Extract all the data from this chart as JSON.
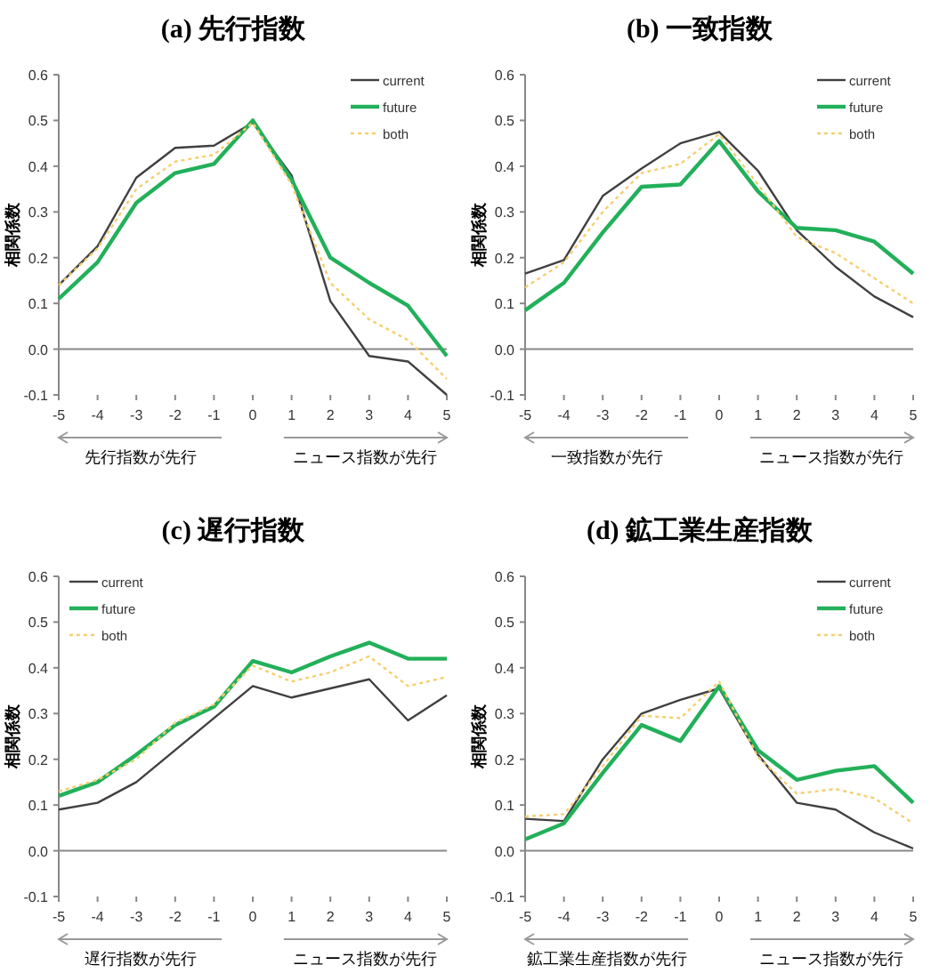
{
  "chart_data": [
    {
      "type": "line",
      "title": "(a) 先行指数",
      "ref_lines": [
        {
          "axis": "y",
          "value": 0,
          "color": "#888888"
        }
      ],
      "ylabel": "相関係数",
      "annotations": [
        "先行指数が先行",
        "ニュース指数が先行"
      ],
      "x": [
        -5,
        -4,
        -3,
        -2,
        -1,
        0,
        1,
        2,
        3,
        4,
        5
      ],
      "xlim": [
        -5,
        5
      ],
      "xticks": [
        -5,
        -4,
        -3,
        -2,
        -1,
        0,
        1,
        2,
        3,
        4,
        5
      ],
      "ylim": [
        -0.1,
        0.6
      ],
      "yticks": [
        {
          "value": -0.1,
          "label": "-0.1"
        },
        {
          "value": 0,
          "label": "0.0"
        },
        {
          "value": 0.1,
          "label": "0.1"
        },
        {
          "value": 0.2,
          "label": "0.2"
        },
        {
          "value": 0.3,
          "label": "0.3"
        },
        {
          "value": 0.4,
          "label": "0.4"
        },
        {
          "value": 0.5,
          "label": "0.5"
        },
        {
          "value": 0.6,
          "label": "0.6"
        }
      ],
      "grid": false,
      "legend": "top right",
      "marker": "none",
      "series": [
        {
          "name": "current",
          "color": "#404040",
          "line_style": "solid",
          "values": [
            0.14,
            0.225,
            0.375,
            0.44,
            0.445,
            0.495,
            0.38,
            0.105,
            -0.015,
            -0.027,
            -0.1
          ]
        },
        {
          "name": "future",
          "color": "#22b05a",
          "line_style": "solid",
          "values": [
            0.11,
            0.19,
            0.32,
            0.385,
            0.405,
            0.5,
            0.37,
            0.2,
            0.145,
            0.095,
            -0.015
          ]
        },
        {
          "name": "both",
          "color": "#f5cf6e",
          "line_style": "dotted",
          "values": [
            0.14,
            0.22,
            0.35,
            0.41,
            0.425,
            0.495,
            0.36,
            0.145,
            0.065,
            0.02,
            -0.065
          ]
        }
      ]
    },
    {
      "type": "line",
      "title": "(b) 一致指数",
      "ref_lines": [
        {
          "axis": "y",
          "value": 0,
          "color": "#888888"
        }
      ],
      "ylabel": "相関係数",
      "annotations": [
        "一致指数が先行",
        "ニュース指数が先行"
      ],
      "x": [
        -5,
        -4,
        -3,
        -2,
        -1,
        0,
        1,
        2,
        3,
        4,
        5
      ],
      "xlim": [
        -5,
        5
      ],
      "xticks": [
        -5,
        -4,
        -3,
        -2,
        -1,
        0,
        1,
        2,
        3,
        4,
        5
      ],
      "ylim": [
        -0.1,
        0.6
      ],
      "yticks": [
        {
          "value": -0.1,
          "label": "-0.1"
        },
        {
          "value": 0,
          "label": "0.0"
        },
        {
          "value": 0.1,
          "label": "0.1"
        },
        {
          "value": 0.2,
          "label": "0.2"
        },
        {
          "value": 0.3,
          "label": "0.3"
        },
        {
          "value": 0.4,
          "label": "0.4"
        },
        {
          "value": 0.5,
          "label": "0.5"
        },
        {
          "value": 0.6,
          "label": "0.6"
        }
      ],
      "grid": false,
      "legend": "top right",
      "marker": "none",
      "series": [
        {
          "name": "current",
          "color": "#404040",
          "line_style": "solid",
          "values": [
            0.165,
            0.195,
            0.335,
            0.395,
            0.45,
            0.475,
            0.39,
            0.26,
            0.18,
            0.115,
            0.07
          ]
        },
        {
          "name": "future",
          "color": "#22b05a",
          "line_style": "solid",
          "values": [
            0.085,
            0.145,
            0.255,
            0.355,
            0.36,
            0.455,
            0.345,
            0.265,
            0.26,
            0.235,
            0.165
          ]
        },
        {
          "name": "both",
          "color": "#f5cf6e",
          "line_style": "dotted",
          "values": [
            0.135,
            0.19,
            0.3,
            0.385,
            0.405,
            0.47,
            0.36,
            0.245,
            0.21,
            0.155,
            0.1
          ]
        }
      ]
    },
    {
      "type": "line",
      "title": "(c) 遅行指数",
      "ref_lines": [
        {
          "axis": "y",
          "value": 0,
          "color": "#888888"
        }
      ],
      "ylabel": "相関係数",
      "annotations": [
        "遅行指数が先行",
        "ニュース指数が先行"
      ],
      "x": [
        -5,
        -4,
        -3,
        -2,
        -1,
        0,
        1,
        2,
        3,
        4,
        5
      ],
      "xlim": [
        -5,
        5
      ],
      "xticks": [
        -5,
        -4,
        -3,
        -2,
        -1,
        0,
        1,
        2,
        3,
        4,
        5
      ],
      "ylim": [
        -0.1,
        0.6
      ],
      "yticks": [
        {
          "value": -0.1,
          "label": "-0.1"
        },
        {
          "value": 0,
          "label": "0.0"
        },
        {
          "value": 0.1,
          "label": "0.1"
        },
        {
          "value": 0.2,
          "label": "0.2"
        },
        {
          "value": 0.3,
          "label": "0.3"
        },
        {
          "value": 0.4,
          "label": "0.4"
        },
        {
          "value": 0.5,
          "label": "0.5"
        },
        {
          "value": 0.6,
          "label": "0.6"
        }
      ],
      "grid": false,
      "legend": "top left",
      "marker": "none",
      "series": [
        {
          "name": "current",
          "color": "#404040",
          "line_style": "solid",
          "values": [
            0.09,
            0.105,
            0.15,
            0.22,
            0.29,
            0.36,
            0.335,
            0.355,
            0.375,
            0.285,
            0.34
          ]
        },
        {
          "name": "future",
          "color": "#22b05a",
          "line_style": "solid",
          "values": [
            0.12,
            0.15,
            0.21,
            0.275,
            0.315,
            0.415,
            0.39,
            0.425,
            0.455,
            0.42,
            0.42
          ]
        },
        {
          "name": "both",
          "color": "#f5cf6e",
          "line_style": "dotted",
          "values": [
            0.13,
            0.155,
            0.2,
            0.28,
            0.32,
            0.405,
            0.37,
            0.39,
            0.425,
            0.36,
            0.38
          ]
        }
      ]
    },
    {
      "type": "line",
      "title": "(d) 鉱工業生産指数",
      "ref_lines": [
        {
          "axis": "y",
          "value": 0,
          "color": "#888888"
        }
      ],
      "ylabel": "相関係数",
      "annotations": [
        "鉱工業生産指数が先行",
        "ニュース指数が先行"
      ],
      "x": [
        -5,
        -4,
        -3,
        -2,
        -1,
        0,
        1,
        2,
        3,
        4,
        5
      ],
      "xlim": [
        -5,
        5
      ],
      "xticks": [
        -5,
        -4,
        -3,
        -2,
        -1,
        0,
        1,
        2,
        3,
        4,
        5
      ],
      "ylim": [
        -0.1,
        0.6
      ],
      "yticks": [
        {
          "value": -0.1,
          "label": "-0.1"
        },
        {
          "value": 0,
          "label": "0.0"
        },
        {
          "value": 0.1,
          "label": "0.1"
        },
        {
          "value": 0.2,
          "label": "0.2"
        },
        {
          "value": 0.3,
          "label": "0.3"
        },
        {
          "value": 0.4,
          "label": "0.4"
        },
        {
          "value": 0.5,
          "label": "0.5"
        },
        {
          "value": 0.6,
          "label": "0.6"
        }
      ],
      "grid": false,
      "legend": "top right",
      "marker": "none",
      "series": [
        {
          "name": "current",
          "color": "#404040",
          "line_style": "solid",
          "values": [
            0.07,
            0.065,
            0.2,
            0.3,
            0.33,
            0.355,
            0.21,
            0.105,
            0.09,
            0.04,
            0.005
          ]
        },
        {
          "name": "future",
          "color": "#22b05a",
          "line_style": "solid",
          "values": [
            0.025,
            0.06,
            0.17,
            0.275,
            0.24,
            0.36,
            0.22,
            0.155,
            0.175,
            0.185,
            0.105
          ]
        },
        {
          "name": "both",
          "color": "#f5cf6e",
          "line_style": "dotted",
          "values": [
            0.075,
            0.08,
            0.185,
            0.295,
            0.29,
            0.37,
            0.205,
            0.125,
            0.135,
            0.115,
            0.06
          ]
        }
      ]
    }
  ]
}
